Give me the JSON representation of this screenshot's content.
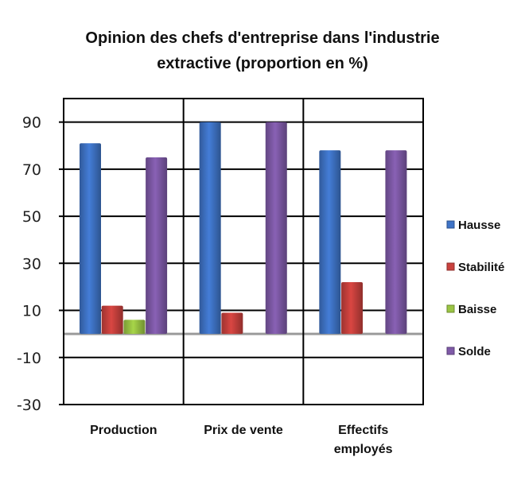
{
  "chart_data": {
    "type": "bar",
    "title_line1": "Opinion des chefs d'entreprise dans l'industrie",
    "title_line2": "extractive (proportion  en %)",
    "categories": [
      [
        "Production"
      ],
      [
        "Prix de vente"
      ],
      [
        "Effectifs",
        "employés"
      ]
    ],
    "series": [
      {
        "name": "Hausse",
        "color": "#3f74c7",
        "values": [
          81,
          90,
          78
        ]
      },
      {
        "name": "Stabilité",
        "color": "#c9413d",
        "values": [
          12,
          9,
          22
        ]
      },
      {
        "name": "Baisse",
        "color": "#9bc544",
        "values": [
          6,
          0,
          0
        ]
      },
      {
        "name": "Solde",
        "color": "#7f5aa8",
        "values": [
          75,
          90,
          78
        ]
      }
    ],
    "yticks": [
      90,
      70,
      50,
      30,
      10,
      -10,
      -30
    ],
    "ylim": [
      -30,
      100
    ],
    "grid": true,
    "legend_position": "right"
  }
}
